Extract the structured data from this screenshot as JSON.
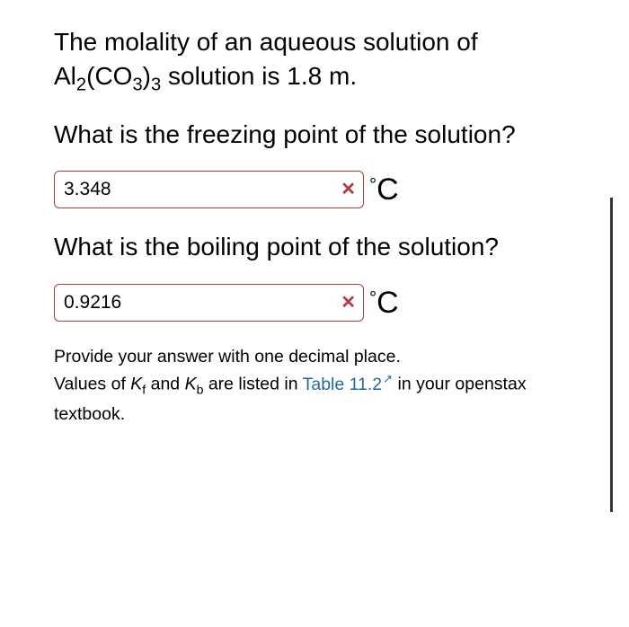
{
  "colors": {
    "text": "#000000",
    "incorrect_border": "#b23a3a",
    "incorrect_x": "#b23a3a",
    "link": "#1f6aa5",
    "background": "#ffffff"
  },
  "problem": {
    "intro_pre": "The molality of an aqueous solution of Al",
    "formula_sub1": "2",
    "formula_mid": "(CO",
    "formula_sub2": "3",
    "formula_close": ")",
    "formula_sub3": "3",
    "intro_post": " solution is 1.8 m."
  },
  "q1": {
    "prompt": "What is the freezing point of the solution?",
    "value": "3.348",
    "unit_deg": "°",
    "unit_letter": "C",
    "status": "incorrect"
  },
  "q2": {
    "prompt": "What is the boiling point of the solution?",
    "value": "0.9216",
    "unit_deg": "°",
    "unit_letter": "C",
    "status": "incorrect"
  },
  "footer": {
    "line1": "Provide your answer with one decimal place.",
    "line2_pre": "Values of ",
    "kf_k": "K",
    "kf_sub": "f",
    "line2_and": " and ",
    "kb_k": "K",
    "kb_sub": "b",
    "line2_mid": " are listed in ",
    "link_text": "Table 11.2",
    "line2_post": " in your openstax textbook."
  }
}
